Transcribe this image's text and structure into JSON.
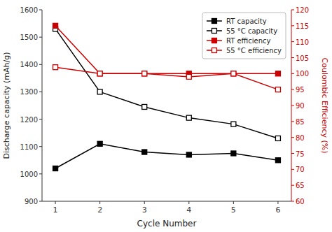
{
  "chart_data": {
    "type": "line",
    "x": [
      1,
      2,
      3,
      4,
      5,
      6
    ],
    "xlim": [
      0.7,
      6.3
    ],
    "xticks": [
      1,
      2,
      3,
      4,
      5,
      6
    ],
    "ylim": [
      900,
      1600
    ],
    "yticks": [
      900,
      1000,
      1100,
      1200,
      1300,
      1400,
      1500,
      1600
    ],
    "y2lim": [
      60,
      120
    ],
    "y2ticks": [
      60,
      65,
      70,
      75,
      80,
      85,
      90,
      95,
      100,
      105,
      110,
      115,
      120
    ],
    "xlabel": "Cycle Number",
    "ylabel": "Discharge capacity (mAh/g)",
    "y2label": "Coulombic Efficiency (%)",
    "legend": "upper right",
    "grid": false,
    "series": [
      {
        "name": "RT capacity",
        "color": "#000000",
        "marker": "square",
        "values": [
          1020,
          1110,
          1080,
          1070,
          1075,
          1050
        ]
      },
      {
        "name": "55 °C capacity",
        "color": "#000000",
        "marker": "square-open",
        "values": [
          1530,
          1300,
          1245,
          1205,
          1182,
          1130
        ]
      },
      {
        "name": "RT efficiency",
        "color": "#cc0000",
        "marker": "square",
        "axis": "y2",
        "values": [
          115,
          100,
          100,
          100,
          100,
          100
        ]
      },
      {
        "name": "55 °C efficiency",
        "color": "#cc0000",
        "marker": "square-open",
        "axis": "y2",
        "values": [
          102,
          100,
          100,
          99,
          100,
          95
        ]
      }
    ]
  }
}
